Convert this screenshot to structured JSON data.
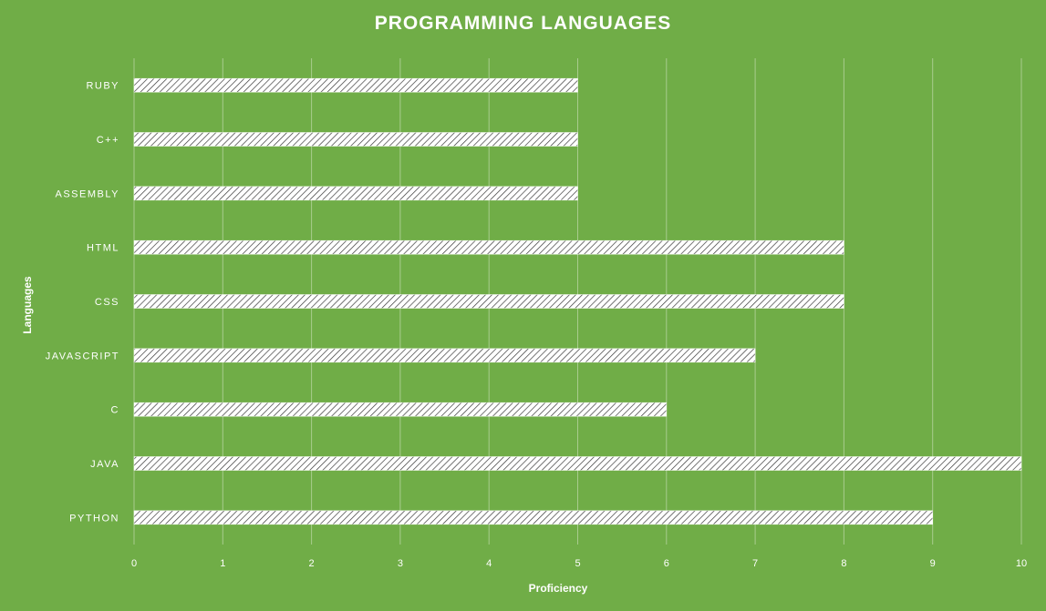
{
  "chart_data": {
    "type": "bar",
    "orientation": "horizontal",
    "title": "PROGRAMMING LANGUAGES",
    "xlabel": "Proficiency",
    "ylabel": "Languages",
    "categories": [
      "PYTHON",
      "JAVA",
      "C",
      "JAVASCRIPT",
      "CSS",
      "HTML",
      "ASSEMBLY",
      "C++",
      "RUBY"
    ],
    "values": [
      9,
      10,
      6,
      7,
      8,
      8,
      5,
      5,
      5
    ],
    "xlim": [
      0,
      10
    ],
    "xticks": [
      "0",
      "1",
      "2",
      "3",
      "4",
      "5",
      "6",
      "7",
      "8",
      "9",
      "10"
    ],
    "grid": true,
    "legend": "none",
    "colors": {
      "background": "#70AD47",
      "bar_fill": "#FFFFFF",
      "hatch_line": "#3A3A3A",
      "gridline": "#A8CC8E",
      "text": "#FFFFFF"
    },
    "bar_pattern": "diagonal-hatch"
  }
}
